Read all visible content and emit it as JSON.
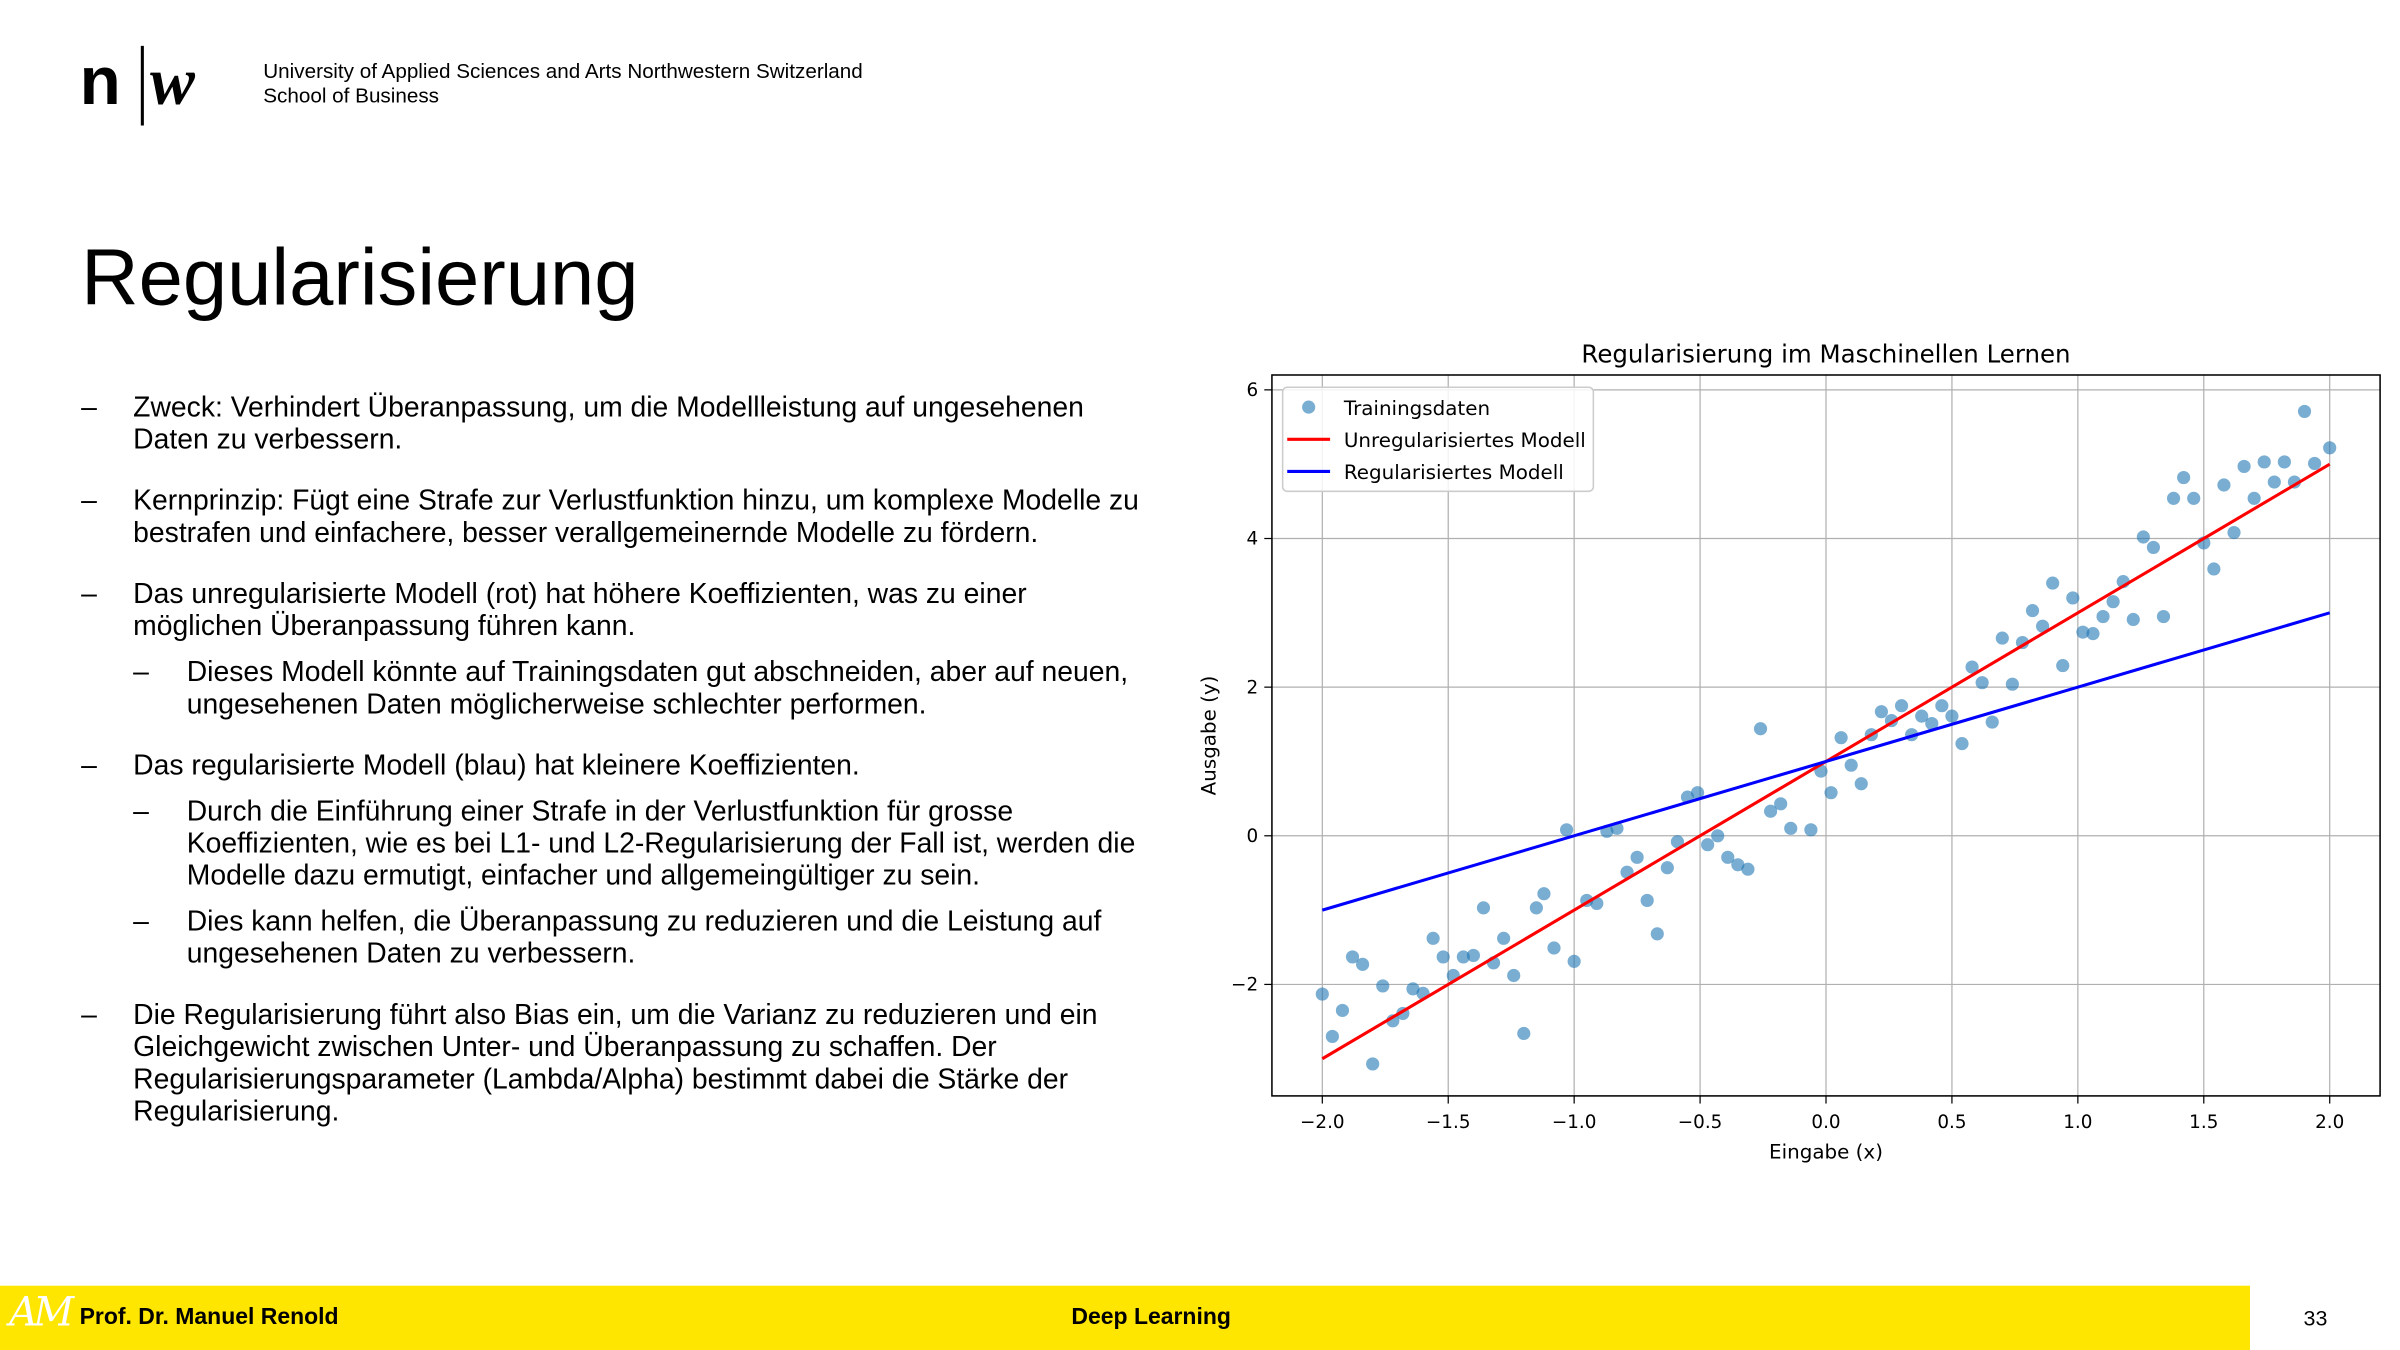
{
  "header": {
    "logo_left": "n",
    "logo_right": "w",
    "institution": "University of Applied Sciences and Arts Northwestern Switzerland",
    "school": "School of Business"
  },
  "title": "Regularisierung",
  "bullets": [
    {
      "text": "Zweck: Verhindert Überanpassung, um die Modellleistung auf ungesehenen Daten zu verbessern.",
      "sub": []
    },
    {
      "text": "Kernprinzip: Fügt eine Strafe zur Verlustfunktion hinzu, um komplexe Modelle zu bestrafen und einfachere, besser verallgemeinernde Modelle zu fördern.",
      "sub": []
    },
    {
      "text": "Das unregularisierte Modell (rot) hat höhere Koeffizienten, was zu einer möglichen Überanpassung führen kann.",
      "sub": [
        "Dieses Modell könnte auf Trainingsdaten gut abschneiden, aber auf neuen, ungesehenen Daten möglicherweise schlechter performen."
      ]
    },
    {
      "text": "Das regularisierte Modell (blau) hat kleinere Koeffizienten.",
      "sub": [
        "Durch die Einführung einer Strafe in der Verlustfunktion für grosse Koeffizienten, wie es bei L1- und L2-Regularisierung der Fall ist, werden die Modelle dazu ermutigt, einfacher und allgemeingültiger zu sein.",
        "Dies kann helfen, die Überanpassung zu reduzieren und die Leistung auf ungesehenen Daten zu verbessern."
      ]
    },
    {
      "text": "Die Regularisierung führt also Bias ein, um die Varianz zu reduzieren und ein Gleichgewicht zwischen Unter- und Überanpassung zu schaffen. Der Regularisierungsparameter (Lambda/Alpha) bestimmt dabei die Stärke der Regularisierung.",
      "sub": []
    }
  ],
  "chart_data": {
    "type": "scatter",
    "title": "Regularisierung im Maschinellen Lernen",
    "x_label": "Eingabe (x)",
    "y_label": "Ausgabe (y)",
    "xlim": [
      -2.2,
      2.2
    ],
    "ylim": [
      -3.5,
      6.2
    ],
    "xticks": [
      {
        "value": -2.0,
        "label": "−2.0"
      },
      {
        "value": -1.5,
        "label": "−1.5"
      },
      {
        "value": -1.0,
        "label": "−1.0"
      },
      {
        "value": -0.5,
        "label": "−0.5"
      },
      {
        "value": 0.0,
        "label": "0.0"
      },
      {
        "value": 0.5,
        "label": "0.5"
      },
      {
        "value": 1.0,
        "label": "1.0"
      },
      {
        "value": 1.5,
        "label": "1.5"
      },
      {
        "value": 2.0,
        "label": "2.0"
      }
    ],
    "yticks": [
      {
        "value": -2,
        "label": "−2"
      },
      0,
      2,
      4,
      6
    ],
    "grid": true,
    "legend": "upper left",
    "series": [
      {
        "name": "Trainingsdaten",
        "type": "scatter",
        "color": "#1f77b4",
        "x": [
          -2.0,
          -1.96,
          -1.92,
          -1.88,
          -1.84,
          -1.8,
          -1.76,
          -1.72,
          -1.68,
          -1.64,
          -1.6,
          -1.56,
          -1.52,
          -1.48,
          -1.44,
          -1.4,
          -1.36,
          -1.32,
          -1.28,
          -1.24,
          -1.2,
          -1.15,
          -1.12,
          -1.08,
          -1.03,
          -1.0,
          -0.95,
          -0.91,
          -0.87,
          -0.83,
          -0.79,
          -0.75,
          -0.71,
          -0.67,
          -0.63,
          -0.59,
          -0.55,
          -0.51,
          -0.47,
          -0.43,
          -0.39,
          -0.35,
          -0.31,
          -0.26,
          -0.22,
          -0.18,
          -0.14,
          -0.06,
          -0.02,
          0.02,
          0.06,
          0.1,
          0.14,
          0.18,
          0.22,
          0.26,
          0.3,
          0.34,
          0.38,
          0.42,
          0.46,
          0.5,
          0.54,
          0.58,
          0.62,
          0.66,
          0.7,
          0.74,
          0.78,
          0.82,
          0.86,
          0.9,
          0.94,
          0.98,
          1.02,
          1.06,
          1.1,
          1.14,
          1.18,
          1.22,
          1.26,
          1.3,
          1.34,
          1.38,
          1.42,
          1.46,
          1.5,
          1.54,
          1.58,
          1.62,
          1.66,
          1.7,
          1.74,
          1.78,
          1.82,
          1.86,
          1.9,
          1.94,
          2.0
        ],
        "values": [
          -2.13,
          -2.7,
          -2.35,
          -1.63,
          -1.73,
          -3.07,
          -2.02,
          -2.49,
          -2.39,
          -2.06,
          -2.12,
          -1.38,
          -1.63,
          -1.88,
          -1.63,
          -1.61,
          -0.97,
          -1.71,
          -1.38,
          -1.88,
          -2.66,
          -0.97,
          -0.78,
          -1.51,
          0.08,
          -1.69,
          -0.87,
          -0.91,
          0.06,
          0.1,
          -0.49,
          -0.29,
          -0.87,
          -1.32,
          -0.43,
          -0.08,
          0.52,
          0.58,
          -0.12,
          0.0,
          -0.29,
          -0.39,
          -0.45,
          1.44,
          0.33,
          0.43,
          0.1,
          0.08,
          0.87,
          0.58,
          1.32,
          0.95,
          0.7,
          1.36,
          1.67,
          1.55,
          1.75,
          1.36,
          1.61,
          1.51,
          1.75,
          1.61,
          1.24,
          2.27,
          2.06,
          1.53,
          2.66,
          2.04,
          2.6,
          3.03,
          2.82,
          3.4,
          2.29,
          3.2,
          2.74,
          2.72,
          2.95,
          3.15,
          3.42,
          2.91,
          4.02,
          3.88,
          2.95,
          4.54,
          4.82,
          4.54,
          3.94,
          3.59,
          4.72,
          4.08,
          4.97,
          4.54,
          5.03,
          4.76,
          5.03,
          4.76,
          5.71,
          5.01,
          5.22
        ]
      },
      {
        "name": "Unregularisiertes Modell",
        "type": "line",
        "color": "#ff0000",
        "x": [
          -2,
          2
        ],
        "values": [
          -3,
          5
        ]
      },
      {
        "name": "Regularisiertes Modell",
        "type": "line",
        "color": "#0000ff",
        "x": [
          -2,
          2
        ],
        "values": [
          -1,
          3
        ]
      }
    ]
  },
  "footer": {
    "logo": "AM",
    "author": "Prof. Dr. Manuel Renold",
    "course": "Deep Learning",
    "page": "33"
  }
}
